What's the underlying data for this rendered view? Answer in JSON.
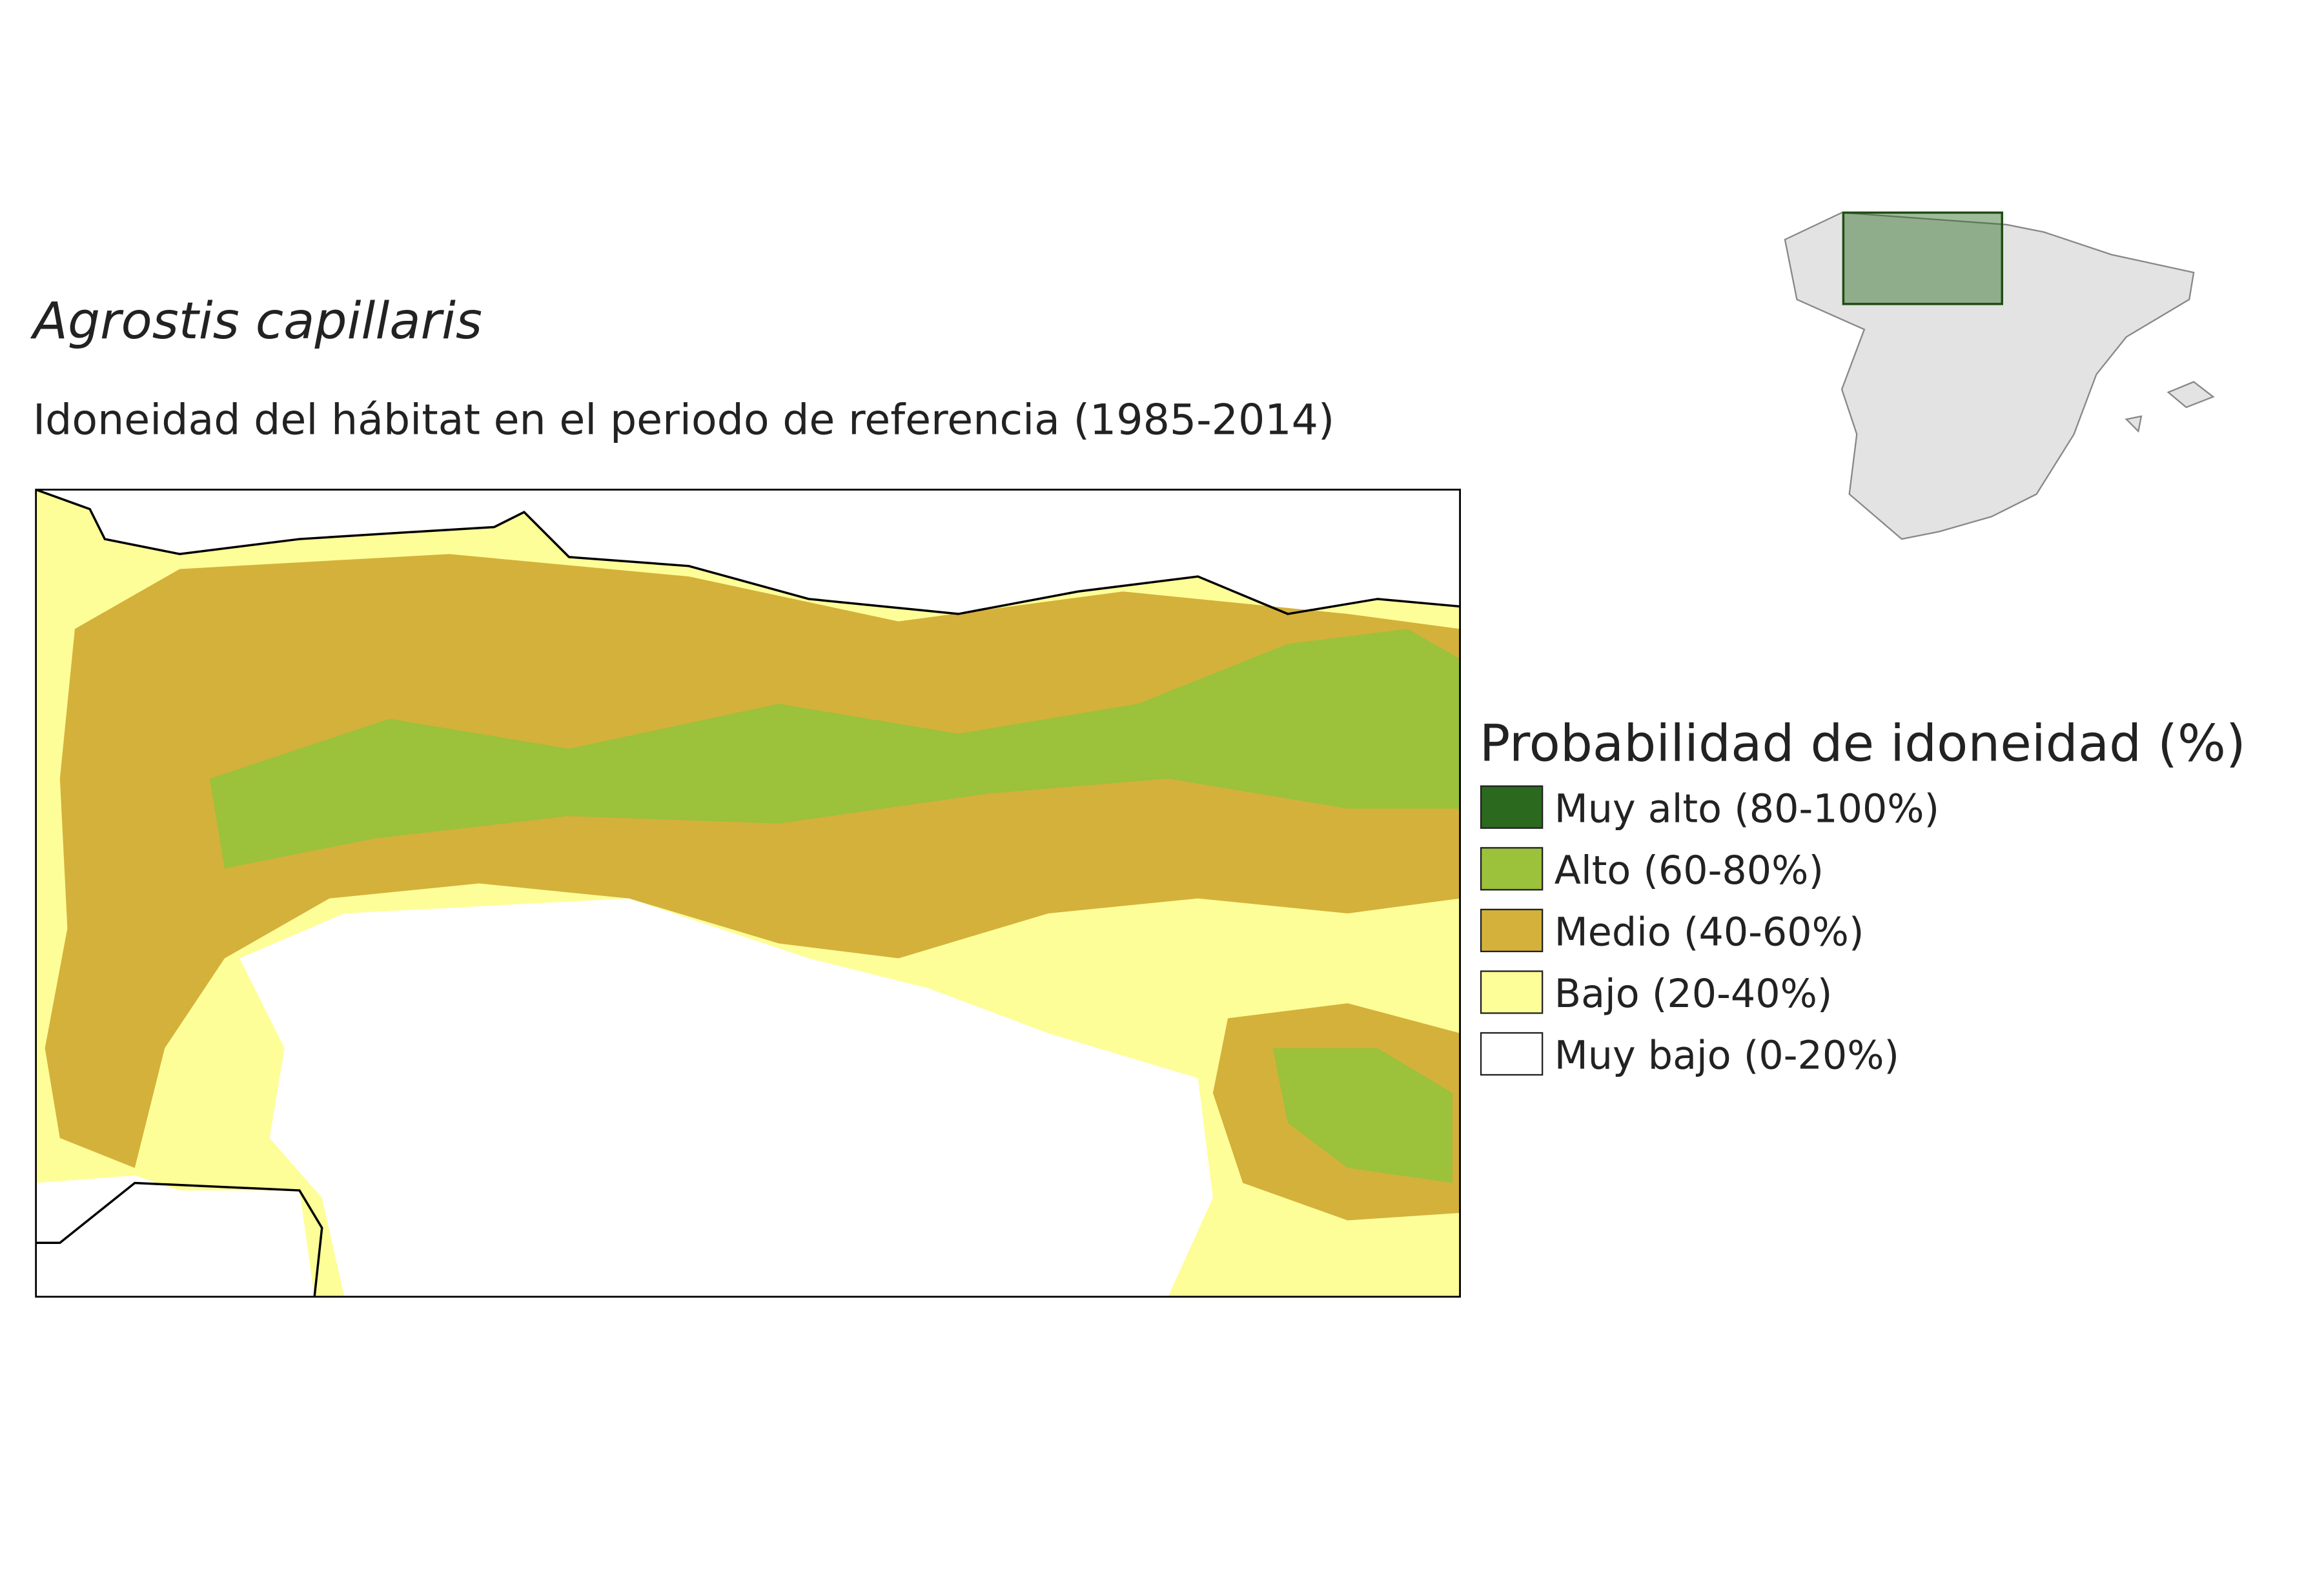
{
  "header": {
    "title": "Agrostis capillaris",
    "subtitle": "Idoneidad del hábitat en el periodo de referencia (1985-2014)"
  },
  "legend": {
    "title": "Probabilidad de idoneidad (%)",
    "items": [
      {
        "label": "Muy alto (80-100%)",
        "color": "#2b6a1e"
      },
      {
        "label": "Alto (60-80%)",
        "color": "#9cc13b"
      },
      {
        "label": "Medio (40-60%)",
        "color": "#d4b13b"
      },
      {
        "label": "Bajo (20-40%)",
        "color": "#fefe98"
      },
      {
        "label": "Muy bajo (0-20%)",
        "color": "#ffffff"
      }
    ]
  }
}
